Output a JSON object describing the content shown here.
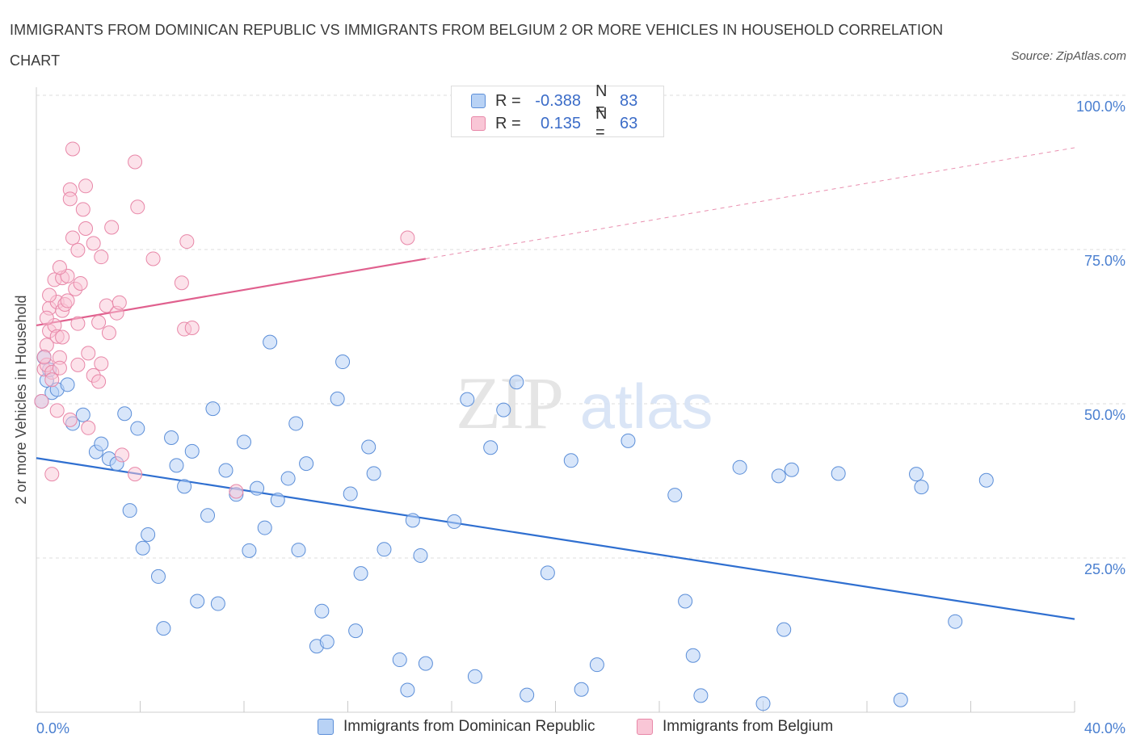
{
  "title": "IMMIGRANTS FROM DOMINICAN REPUBLIC VS IMMIGRANTS FROM BELGIUM 2 OR MORE VEHICLES IN HOUSEHOLD CORRELATION CHART",
  "source": "Source: ZipAtlas.com",
  "watermark": {
    "zip": "ZIP",
    "atlas": "atlas"
  },
  "colors": {
    "blue_fill": "#b8d2f5",
    "blue_stroke": "#5b8ed8",
    "blue_line": "#2f6fd0",
    "pink_fill": "#f9c6d6",
    "pink_stroke": "#e887a8",
    "pink_line": "#e0608e",
    "axis_text": "#4a7fd0",
    "grid": "#dcdcdc"
  },
  "legend": {
    "rows": [
      {
        "r_label": "R =",
        "r_value": "-0.388",
        "n_label": "N =",
        "n_value": "83"
      },
      {
        "r_label": "R =",
        "r_value": "0.135",
        "n_label": "N =",
        "n_value": "63"
      }
    ]
  },
  "chart_data": {
    "type": "scatter",
    "ylabel": "2 or more Vehicles in Household",
    "xlim": [
      0,
      40
    ],
    "ylim": [
      0,
      100
    ],
    "x_tick_labels": [
      "0.0%",
      "40.0%"
    ],
    "y_ticks": [
      25,
      50,
      75,
      100
    ],
    "y_tick_labels": [
      "25.0%",
      "50.0%",
      "75.0%",
      "100.0%"
    ],
    "grid": true,
    "legend_position": "top-center",
    "series": [
      {
        "name": "Immigrants from Dominican Republic",
        "color": "#5b8ed8",
        "trend": {
          "x": [
            0,
            40
          ],
          "y": [
            41.2,
            15.1
          ]
        },
        "points": [
          [
            0.3,
            57.5
          ],
          [
            0.4,
            53.8
          ],
          [
            0.6,
            51.8
          ],
          [
            0.8,
            52.3
          ],
          [
            1.2,
            53.1
          ],
          [
            1.4,
            46.8
          ],
          [
            1.8,
            48.2
          ],
          [
            2.3,
            42.2
          ],
          [
            2.5,
            43.5
          ],
          [
            2.8,
            41.1
          ],
          [
            3.1,
            40.3
          ],
          [
            3.4,
            48.4
          ],
          [
            3.6,
            32.7
          ],
          [
            3.9,
            46.0
          ],
          [
            4.1,
            26.6
          ],
          [
            4.3,
            28.8
          ],
          [
            4.7,
            22.0
          ],
          [
            4.9,
            13.6
          ],
          [
            5.2,
            44.5
          ],
          [
            5.4,
            40.0
          ],
          [
            5.7,
            36.6
          ],
          [
            6.0,
            42.3
          ],
          [
            6.2,
            18.0
          ],
          [
            6.6,
            31.9
          ],
          [
            6.8,
            49.2
          ],
          [
            7.0,
            17.6
          ],
          [
            7.3,
            39.2
          ],
          [
            7.7,
            35.3
          ],
          [
            8.0,
            43.8
          ],
          [
            8.2,
            26.2
          ],
          [
            8.5,
            36.3
          ],
          [
            8.8,
            29.9
          ],
          [
            9.0,
            60.0
          ],
          [
            9.3,
            34.4
          ],
          [
            9.7,
            37.9
          ],
          [
            10.0,
            46.8
          ],
          [
            10.1,
            26.3
          ],
          [
            10.4,
            40.3
          ],
          [
            10.8,
            10.7
          ],
          [
            11.0,
            16.4
          ],
          [
            11.2,
            11.4
          ],
          [
            11.6,
            50.8
          ],
          [
            11.8,
            56.8
          ],
          [
            12.1,
            35.4
          ],
          [
            12.3,
            13.2
          ],
          [
            12.5,
            22.5
          ],
          [
            12.8,
            43.0
          ],
          [
            13.0,
            38.7
          ],
          [
            13.4,
            26.4
          ],
          [
            14.0,
            8.5
          ],
          [
            14.3,
            3.6
          ],
          [
            14.5,
            31.1
          ],
          [
            14.8,
            25.4
          ],
          [
            15.0,
            7.9
          ],
          [
            16.1,
            30.9
          ],
          [
            16.6,
            50.7
          ],
          [
            16.9,
            5.8
          ],
          [
            17.5,
            42.9
          ],
          [
            18.0,
            49.0
          ],
          [
            18.5,
            53.5
          ],
          [
            18.9,
            2.8
          ],
          [
            19.7,
            22.6
          ],
          [
            20.6,
            40.8
          ],
          [
            21.0,
            3.7
          ],
          [
            21.6,
            7.7
          ],
          [
            22.8,
            44.0
          ],
          [
            24.6,
            35.2
          ],
          [
            25.0,
            18.0
          ],
          [
            25.3,
            9.2
          ],
          [
            25.6,
            2.7
          ],
          [
            27.1,
            39.7
          ],
          [
            28.0,
            1.4
          ],
          [
            28.6,
            38.3
          ],
          [
            28.8,
            13.4
          ],
          [
            29.1,
            39.3
          ],
          [
            30.9,
            38.7
          ],
          [
            33.3,
            2.0
          ],
          [
            33.9,
            38.6
          ],
          [
            34.1,
            36.5
          ],
          [
            35.4,
            14.7
          ],
          [
            36.6,
            37.6
          ],
          [
            0.5,
            55.5
          ],
          [
            0.2,
            50.4
          ]
        ]
      },
      {
        "name": "Immigrants from Belgium",
        "color": "#e887a8",
        "trend": {
          "x": [
            0,
            15
          ],
          "y": [
            62.7,
            73.5
          ]
        },
        "trend_extended": {
          "x": [
            15,
            40
          ],
          "y": [
            73.5,
            91.5
          ]
        },
        "points": [
          [
            0.2,
            50.4
          ],
          [
            0.3,
            55.6
          ],
          [
            0.4,
            59.5
          ],
          [
            0.4,
            56.3
          ],
          [
            0.5,
            61.8
          ],
          [
            0.5,
            65.5
          ],
          [
            0.6,
            55.1
          ],
          [
            0.6,
            38.6
          ],
          [
            0.7,
            62.7
          ],
          [
            0.7,
            70.1
          ],
          [
            0.8,
            60.9
          ],
          [
            0.8,
            66.5
          ],
          [
            0.9,
            57.5
          ],
          [
            0.9,
            55.8
          ],
          [
            1.0,
            65.1
          ],
          [
            1.0,
            70.4
          ],
          [
            1.1,
            66.1
          ],
          [
            1.2,
            66.7
          ],
          [
            1.3,
            47.4
          ],
          [
            1.3,
            84.7
          ],
          [
            1.3,
            83.2
          ],
          [
            1.4,
            91.3
          ],
          [
            1.4,
            76.9
          ],
          [
            1.5,
            68.6
          ],
          [
            1.6,
            56.3
          ],
          [
            1.6,
            74.9
          ],
          [
            1.7,
            69.5
          ],
          [
            1.8,
            81.5
          ],
          [
            1.9,
            78.4
          ],
          [
            1.9,
            85.3
          ],
          [
            2.0,
            46.1
          ],
          [
            2.2,
            76.0
          ],
          [
            2.2,
            54.6
          ],
          [
            2.4,
            63.2
          ],
          [
            2.4,
            53.6
          ],
          [
            2.5,
            73.8
          ],
          [
            2.5,
            56.5
          ],
          [
            2.7,
            65.9
          ],
          [
            2.8,
            61.5
          ],
          [
            2.9,
            78.6
          ],
          [
            3.1,
            64.7
          ],
          [
            3.2,
            66.4
          ],
          [
            3.3,
            41.7
          ],
          [
            3.8,
            89.2
          ],
          [
            3.8,
            38.6
          ],
          [
            3.9,
            81.9
          ],
          [
            4.5,
            73.5
          ],
          [
            5.6,
            69.6
          ],
          [
            5.7,
            62.1
          ],
          [
            5.8,
            76.3
          ],
          [
            6.0,
            62.3
          ],
          [
            7.7,
            35.8
          ],
          [
            14.3,
            76.9
          ],
          [
            0.3,
            57.6
          ],
          [
            0.6,
            53.9
          ],
          [
            1.0,
            60.8
          ],
          [
            1.2,
            70.7
          ],
          [
            0.4,
            63.9
          ],
          [
            0.9,
            72.1
          ],
          [
            0.5,
            67.6
          ],
          [
            1.6,
            63.0
          ],
          [
            2.0,
            58.2
          ],
          [
            0.8,
            48.9
          ]
        ]
      }
    ]
  },
  "bottom_legend": {
    "items": [
      "Immigrants from Dominican Republic",
      "Immigrants from Belgium"
    ]
  }
}
